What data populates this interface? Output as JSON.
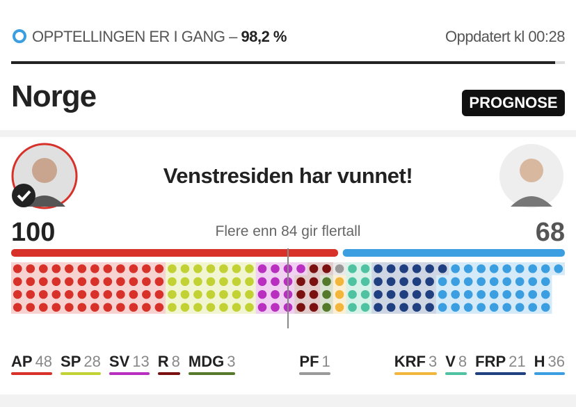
{
  "status": {
    "label": "OPPTELLINGEN ER I GANG –",
    "progress": {
      "value": 98.2,
      "label": "98,2 %"
    },
    "updated": "Oppdatert kl 00:28"
  },
  "region": "Norge",
  "badge": "PROGNOSE",
  "headline": "Venstresiden har vunnet!",
  "left_total": 100,
  "right_total": 68,
  "left_color": "#d8312a",
  "right_color": "#3a9ee0",
  "majority_note": "Flere enn 84 gir flertall",
  "parties": [
    {
      "name": "AP",
      "seats": 48,
      "color": "#d8312a"
    },
    {
      "name": "SP",
      "seats": 28,
      "color": "#c2d234"
    },
    {
      "name": "SV",
      "seats": 13,
      "color": "#b92fc0"
    },
    {
      "name": "R",
      "seats": 8,
      "color": "#7a1010"
    },
    {
      "name": "MDG",
      "seats": 3,
      "color": "#557a2c"
    },
    {
      "name": "PF",
      "seats": 1,
      "color": "#999999"
    },
    {
      "name": "KRF",
      "seats": 3,
      "color": "#f2b63d"
    },
    {
      "name": "V",
      "seats": 8,
      "color": "#4fc3a1"
    },
    {
      "name": "FRP",
      "seats": 21,
      "color": "#1f3f80"
    },
    {
      "name": "H",
      "seats": 36,
      "color": "#3a9ee0"
    }
  ]
}
